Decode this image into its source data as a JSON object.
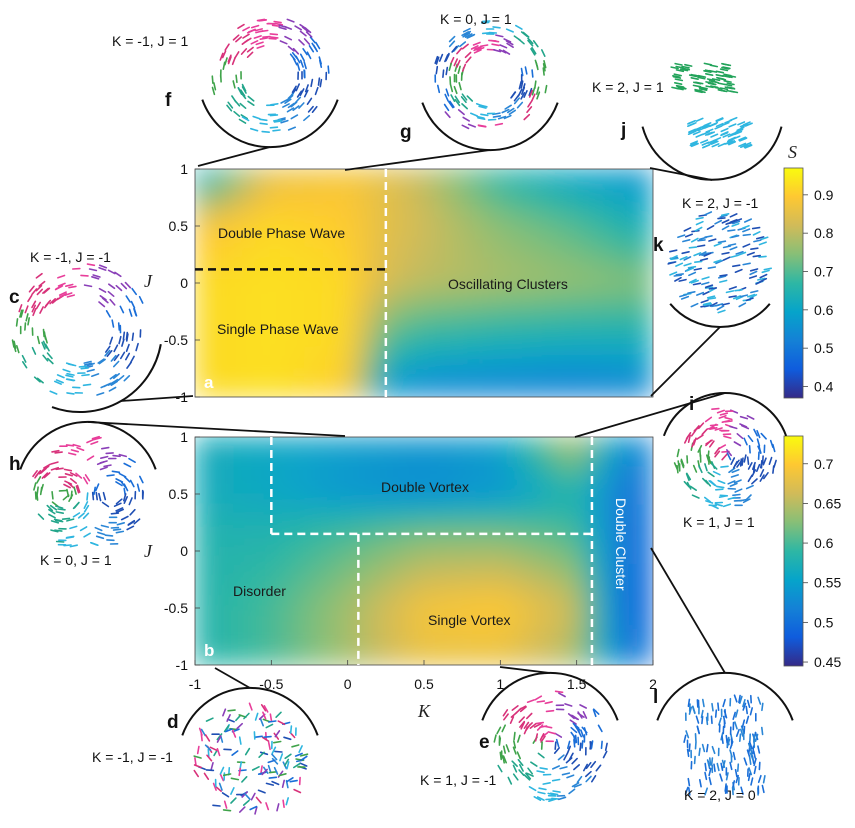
{
  "chart_data": [
    {
      "type": "heatmap",
      "panel_letter": "a",
      "xlim": [
        -1,
        2
      ],
      "ylim": [
        -1,
        1
      ],
      "y_ticks": [
        "1",
        "0.5",
        "0",
        "-0.5",
        "-1"
      ],
      "ylabel": "J",
      "colorbar": {
        "label": "S",
        "range": [
          0.37,
          0.97
        ],
        "ticks": [
          "0.9",
          "0.8",
          "0.7",
          "0.6",
          "0.5",
          "0.4"
        ]
      },
      "regions": [
        {
          "label": "Double Phase Wave"
        },
        {
          "label": "Single Phase Wave"
        },
        {
          "label": "Oscillating Clusters"
        }
      ],
      "boundaries": [
        {
          "orientation": "vertical",
          "K": 0.25,
          "color": "#ffffff"
        },
        {
          "orientation": "horizontal",
          "J": 0.12,
          "K_range": [
            -1,
            0.25
          ],
          "color": "#111111"
        }
      ],
      "field": {
        "K": [
          -1,
          -0.5,
          0,
          0.25,
          0.5,
          1,
          1.5,
          2
        ],
        "J": [
          1,
          0.5,
          0,
          -0.5,
          -1
        ],
        "S": [
          [
            0.55,
            0.85,
            0.88,
            0.85,
            0.8,
            0.65,
            0.58,
            0.55
          ],
          [
            0.88,
            0.92,
            0.9,
            0.85,
            0.82,
            0.75,
            0.7,
            0.62
          ],
          [
            0.92,
            0.93,
            0.92,
            0.83,
            0.8,
            0.78,
            0.76,
            0.74
          ],
          [
            0.92,
            0.93,
            0.92,
            0.7,
            0.66,
            0.64,
            0.63,
            0.63
          ],
          [
            0.92,
            0.93,
            0.9,
            0.55,
            0.52,
            0.51,
            0.5,
            0.52
          ]
        ]
      },
      "insets": [
        {
          "letter": "f",
          "label": "K = -1, J = 1"
        },
        {
          "letter": "g",
          "label": "K = 0, J = 1"
        },
        {
          "letter": "j",
          "label": "K = 2, J = 1"
        },
        {
          "letter": "k",
          "label": "K = 2, J = -1"
        },
        {
          "letter": "c",
          "label": "K = -1, J = -1"
        }
      ]
    },
    {
      "type": "heatmap",
      "panel_letter": "b",
      "xlim": [
        -1,
        2
      ],
      "ylim": [
        -1,
        1
      ],
      "x_ticks": [
        "-1",
        "-0.5",
        "0",
        "0.5",
        "1",
        "1.5",
        "2"
      ],
      "y_ticks": [
        "1",
        "0.5",
        "0",
        "-0.5",
        "-1"
      ],
      "xlabel": "K",
      "ylabel": "J",
      "colorbar": {
        "range": [
          0.445,
          0.735
        ],
        "ticks": [
          "0.7",
          "0.65",
          "0.6",
          "0.55",
          "0.5",
          "0.45"
        ]
      },
      "regions": [
        {
          "label": "Double Vortex"
        },
        {
          "label": "Disorder"
        },
        {
          "label": "Single Vortex"
        },
        {
          "label": "Double Cluster"
        }
      ],
      "boundaries": [
        {
          "orientation": "vertical",
          "K": -0.5,
          "J_range": [
            0.15,
            1
          ],
          "color": "#ffffff"
        },
        {
          "orientation": "horizontal",
          "J": 0.15,
          "K_range": [
            -0.5,
            1.6
          ],
          "color": "#ffffff"
        },
        {
          "orientation": "vertical",
          "K": 0.07,
          "J_range": [
            -1,
            0.15
          ],
          "color": "#ffffff"
        },
        {
          "orientation": "vertical",
          "K": 1.6,
          "J_range": [
            -1,
            1
          ],
          "color": "#ffffff"
        }
      ],
      "field": {
        "K": [
          -1,
          -0.5,
          0,
          0.5,
          1,
          1.5,
          1.75,
          2
        ],
        "J": [
          1,
          0.5,
          0.15,
          -0.5,
          -1
        ],
        "S": [
          [
            0.57,
            0.56,
            0.55,
            0.54,
            0.55,
            0.66,
            0.55,
            0.52
          ],
          [
            0.57,
            0.56,
            0.54,
            0.53,
            0.54,
            0.58,
            0.52,
            0.5
          ],
          [
            0.58,
            0.58,
            0.6,
            0.62,
            0.62,
            0.6,
            0.52,
            0.49
          ],
          [
            0.58,
            0.6,
            0.64,
            0.69,
            0.7,
            0.66,
            0.52,
            0.48
          ],
          [
            0.58,
            0.6,
            0.64,
            0.68,
            0.68,
            0.64,
            0.53,
            0.5
          ]
        ]
      },
      "insets": [
        {
          "letter": "h",
          "label": "K = 0, J = 1"
        },
        {
          "letter": "i",
          "label": "K = 1, J = 1"
        },
        {
          "letter": "d",
          "label": "K = -1, J = -1"
        },
        {
          "letter": "e",
          "label": "K = 1, J = -1"
        },
        {
          "letter": "l",
          "label": "K = 2, J = 0"
        }
      ]
    }
  ],
  "colors": {
    "parula": [
      "#352a87",
      "#0f5cdd",
      "#1481d6",
      "#06a4ca",
      "#2eb7a4",
      "#87bf77",
      "#d1bb59",
      "#fec832",
      "#f9fb0e"
    ]
  }
}
